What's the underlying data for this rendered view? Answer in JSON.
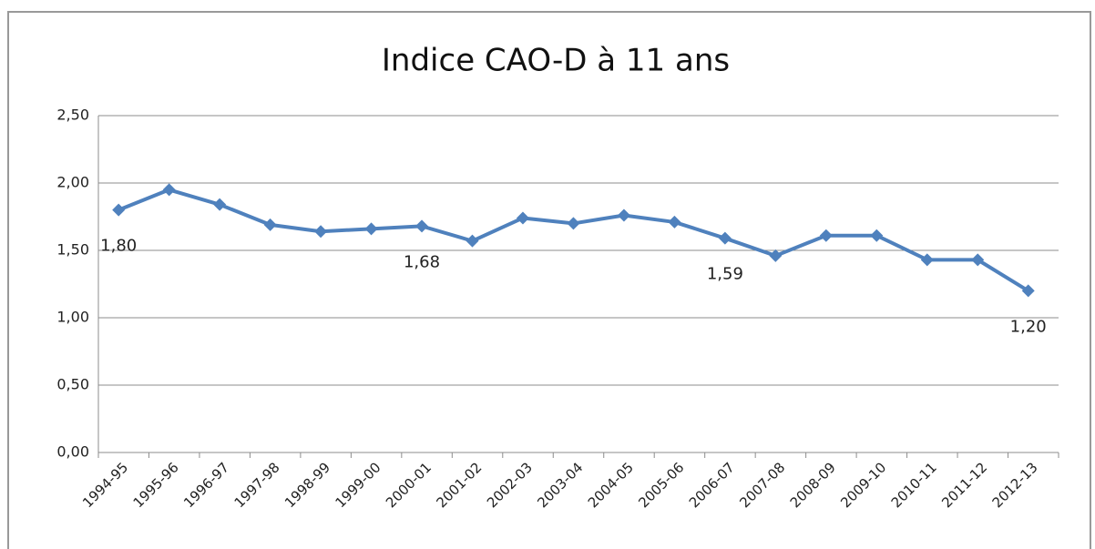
{
  "chart_data": {
    "type": "line",
    "title": "Indice CAO-D à 11 ans",
    "categories": [
      "1994-95",
      "1995-96",
      "1996-97",
      "1997-98",
      "1998-99",
      "1999-00",
      "2000-01",
      "2001-02",
      "2002-03",
      "2003-04",
      "2004-05",
      "2005-06",
      "2006-07",
      "2007-08",
      "2008-09",
      "2009-10",
      "2010-11",
      "2011-12",
      "2012-13"
    ],
    "series": [
      {
        "name": "Indice CAO-D",
        "color": "#4f81bd",
        "values": [
          1.8,
          1.95,
          1.84,
          1.69,
          1.64,
          1.66,
          1.68,
          1.57,
          1.74,
          1.7,
          1.76,
          1.71,
          1.59,
          1.46,
          1.61,
          1.61,
          1.43,
          1.43,
          1.2
        ],
        "value_labels": [
          "1,80",
          null,
          null,
          null,
          null,
          null,
          "1,68",
          null,
          null,
          null,
          null,
          null,
          "1,59",
          null,
          null,
          null,
          null,
          null,
          "1,20"
        ]
      }
    ],
    "ylim": [
      0,
      2.5
    ],
    "yticks": [
      {
        "value": 0,
        "label": "0,00"
      },
      {
        "value": 0.5,
        "label": "0,50"
      },
      {
        "value": 1,
        "label": "1,00"
      },
      {
        "value": 1.5,
        "label": "1,50"
      },
      {
        "value": 2,
        "label": "2,00"
      },
      {
        "value": 2.5,
        "label": "2,50"
      }
    ],
    "grid": true
  }
}
